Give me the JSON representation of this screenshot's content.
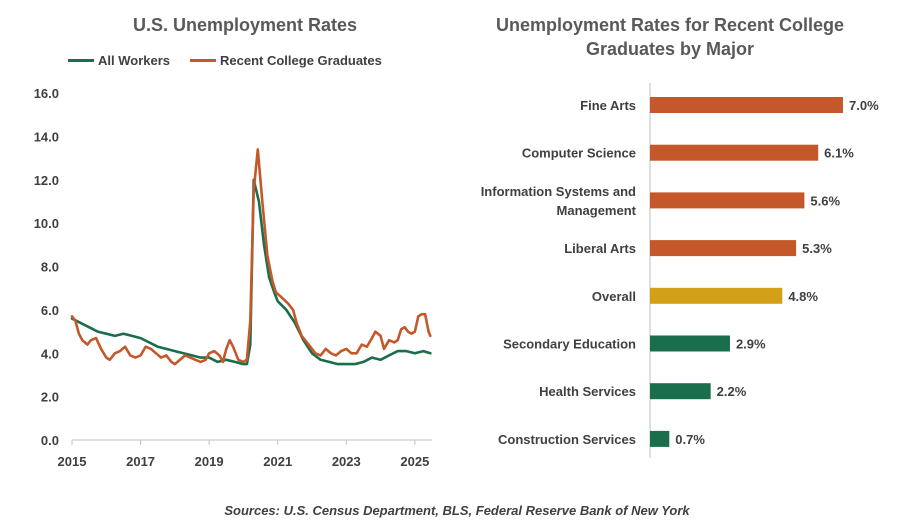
{
  "colors": {
    "all_workers": "#1a6e4b",
    "grads": "#c5582b",
    "overall": "#d4a017",
    "axis": "#bfbfbf",
    "text": "#404040"
  },
  "source": "Sources: U.S. Census Department, BLS, Federal Reserve Bank of New York",
  "chart_data": [
    {
      "type": "line",
      "title": "U.S. Unemployment Rates",
      "xlabel": "",
      "ylabel": "",
      "ylim": [
        0,
        16
      ],
      "yticks": [
        "0.0",
        "2.0",
        "4.0",
        "6.0",
        "8.0",
        "10.0",
        "12.0",
        "14.0",
        "16.0"
      ],
      "xlim": [
        2015.0,
        2025.5
      ],
      "xticks": [
        "2015",
        "2017",
        "2019",
        "2021",
        "2023",
        "2025"
      ],
      "legend": "top",
      "grid": false,
      "series": [
        {
          "name": "All Workers",
          "color": "#1a6e4b",
          "points": [
            [
              2015.0,
              5.6
            ],
            [
              2015.25,
              5.4
            ],
            [
              2015.5,
              5.2
            ],
            [
              2015.75,
              5.0
            ],
            [
              2016.0,
              4.9
            ],
            [
              2016.25,
              4.8
            ],
            [
              2016.5,
              4.9
            ],
            [
              2016.75,
              4.8
            ],
            [
              2017.0,
              4.7
            ],
            [
              2017.25,
              4.5
            ],
            [
              2017.5,
              4.3
            ],
            [
              2017.75,
              4.2
            ],
            [
              2018.0,
              4.1
            ],
            [
              2018.25,
              4.0
            ],
            [
              2018.5,
              3.9
            ],
            [
              2018.75,
              3.8
            ],
            [
              2019.0,
              3.8
            ],
            [
              2019.25,
              3.6
            ],
            [
              2019.5,
              3.7
            ],
            [
              2019.75,
              3.6
            ],
            [
              2020.0,
              3.5
            ],
            [
              2020.1,
              3.5
            ],
            [
              2020.2,
              4.4
            ],
            [
              2020.3,
              12.0
            ],
            [
              2020.45,
              11.0
            ],
            [
              2020.6,
              9.0
            ],
            [
              2020.75,
              7.5
            ],
            [
              2020.9,
              6.8
            ],
            [
              2021.0,
              6.4
            ],
            [
              2021.25,
              6.0
            ],
            [
              2021.5,
              5.4
            ],
            [
              2021.75,
              4.6
            ],
            [
              2022.0,
              4.0
            ],
            [
              2022.25,
              3.7
            ],
            [
              2022.5,
              3.6
            ],
            [
              2022.75,
              3.5
            ],
            [
              2023.0,
              3.5
            ],
            [
              2023.25,
              3.5
            ],
            [
              2023.5,
              3.6
            ],
            [
              2023.75,
              3.8
            ],
            [
              2024.0,
              3.7
            ],
            [
              2024.25,
              3.9
            ],
            [
              2024.5,
              4.1
            ],
            [
              2024.75,
              4.1
            ],
            [
              2025.0,
              4.0
            ],
            [
              2025.25,
              4.1
            ],
            [
              2025.45,
              4.0
            ]
          ]
        },
        {
          "name": "Recent College Graduates",
          "color": "#c5582b",
          "points": [
            [
              2015.0,
              5.7
            ],
            [
              2015.1,
              5.5
            ],
            [
              2015.2,
              4.9
            ],
            [
              2015.3,
              4.6
            ],
            [
              2015.45,
              4.4
            ],
            [
              2015.55,
              4.6
            ],
            [
              2015.7,
              4.7
            ],
            [
              2015.85,
              4.2
            ],
            [
              2016.0,
              3.8
            ],
            [
              2016.1,
              3.7
            ],
            [
              2016.25,
              4.0
            ],
            [
              2016.4,
              4.1
            ],
            [
              2016.55,
              4.3
            ],
            [
              2016.7,
              3.9
            ],
            [
              2016.85,
              3.8
            ],
            [
              2017.0,
              3.9
            ],
            [
              2017.15,
              4.3
            ],
            [
              2017.3,
              4.2
            ],
            [
              2017.45,
              4.0
            ],
            [
              2017.6,
              3.8
            ],
            [
              2017.75,
              3.9
            ],
            [
              2017.9,
              3.6
            ],
            [
              2018.0,
              3.5
            ],
            [
              2018.15,
              3.7
            ],
            [
              2018.3,
              3.9
            ],
            [
              2018.45,
              3.8
            ],
            [
              2018.6,
              3.7
            ],
            [
              2018.75,
              3.6
            ],
            [
              2018.9,
              3.7
            ],
            [
              2019.0,
              4.0
            ],
            [
              2019.15,
              4.1
            ],
            [
              2019.3,
              3.9
            ],
            [
              2019.4,
              3.6
            ],
            [
              2019.5,
              4.2
            ],
            [
              2019.6,
              4.6
            ],
            [
              2019.7,
              4.3
            ],
            [
              2019.85,
              3.7
            ],
            [
              2020.0,
              3.6
            ],
            [
              2020.1,
              3.7
            ],
            [
              2020.2,
              5.5
            ],
            [
              2020.3,
              11.5
            ],
            [
              2020.42,
              13.4
            ],
            [
              2020.55,
              11.0
            ],
            [
              2020.7,
              8.5
            ],
            [
              2020.85,
              7.3
            ],
            [
              2020.95,
              6.8
            ],
            [
              2021.1,
              6.6
            ],
            [
              2021.3,
              6.3
            ],
            [
              2021.45,
              6.0
            ],
            [
              2021.55,
              5.4
            ],
            [
              2021.7,
              4.8
            ],
            [
              2021.85,
              4.5
            ],
            [
              2022.0,
              4.2
            ],
            [
              2022.1,
              4.0
            ],
            [
              2022.25,
              3.9
            ],
            [
              2022.4,
              4.2
            ],
            [
              2022.55,
              4.0
            ],
            [
              2022.7,
              3.9
            ],
            [
              2022.85,
              4.1
            ],
            [
              2023.0,
              4.2
            ],
            [
              2023.15,
              4.0
            ],
            [
              2023.3,
              4.0
            ],
            [
              2023.45,
              4.4
            ],
            [
              2023.6,
              4.3
            ],
            [
              2023.75,
              4.7
            ],
            [
              2023.85,
              5.0
            ],
            [
              2024.0,
              4.8
            ],
            [
              2024.1,
              4.2
            ],
            [
              2024.25,
              4.6
            ],
            [
              2024.4,
              4.5
            ],
            [
              2024.5,
              4.6
            ],
            [
              2024.6,
              5.1
            ],
            [
              2024.7,
              5.2
            ],
            [
              2024.8,
              5.0
            ],
            [
              2024.9,
              4.9
            ],
            [
              2025.0,
              5.0
            ],
            [
              2025.1,
              5.7
            ],
            [
              2025.2,
              5.8
            ],
            [
              2025.3,
              5.8
            ],
            [
              2025.4,
              5.0
            ],
            [
              2025.45,
              4.8
            ]
          ]
        }
      ]
    },
    {
      "type": "bar",
      "orientation": "horizontal",
      "title": "Unemployment Rates for Recent College Graduates by Major",
      "xlim": [
        0,
        7.5
      ],
      "categories": [
        "Fine Arts",
        "Computer Science",
        "Information Systems and Management",
        "Liberal Arts",
        "Overall",
        "Secondary Education",
        "Health Services",
        "Construction Services"
      ],
      "category_lines": [
        [
          "Fine Arts"
        ],
        [
          "Computer Science"
        ],
        [
          "Information Systems and",
          "Management"
        ],
        [
          "Liberal Arts"
        ],
        [
          "Overall"
        ],
        [
          "Secondary Education"
        ],
        [
          "Health Services"
        ],
        [
          "Construction Services"
        ]
      ],
      "values": [
        7.0,
        6.1,
        5.6,
        5.3,
        4.8,
        2.9,
        2.2,
        0.7
      ],
      "labels": [
        "7.0%",
        "6.1%",
        "5.6%",
        "5.3%",
        "4.8%",
        "2.9%",
        "2.2%",
        "0.7%"
      ],
      "colors": [
        "#c5582b",
        "#c5582b",
        "#c5582b",
        "#c5582b",
        "#d4a017",
        "#1a6e4b",
        "#1a6e4b",
        "#1a6e4b"
      ]
    }
  ]
}
